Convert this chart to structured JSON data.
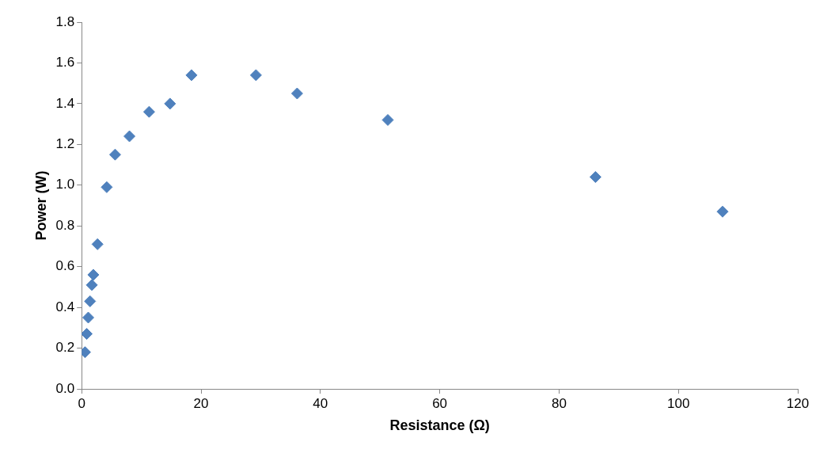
{
  "chart_data": {
    "type": "scatter",
    "xlabel": "Resistance (Ω)",
    "ylabel": "Power (W)",
    "x": [
      0.56,
      0.84,
      1.1,
      1.4,
      1.7,
      1.95,
      2.65,
      4.2,
      5.6,
      8.0,
      11.3,
      14.8,
      18.4,
      29.2,
      36.1,
      51.3,
      86.1,
      107.4
    ],
    "series": [
      {
        "color": "#4f81bd",
        "values": [
          0.18,
          0.27,
          0.35,
          0.43,
          0.51,
          0.56,
          0.71,
          0.99,
          1.15,
          1.24,
          1.36,
          1.4,
          1.54,
          1.54,
          1.45,
          1.32,
          1.04,
          0.87
        ]
      }
    ],
    "xlim": [
      0,
      120
    ],
    "xticks": [
      0,
      20,
      40,
      60,
      80,
      100,
      120
    ],
    "ylim": [
      0,
      1.8
    ],
    "yticks": [
      {
        "value": 0,
        "label": "0.0"
      },
      {
        "value": 0.2,
        "label": "0.2"
      },
      {
        "value": 0.4,
        "label": "0.4"
      },
      {
        "value": 0.6,
        "label": "0.6"
      },
      {
        "value": 0.8,
        "label": "0.8"
      },
      {
        "value": 1,
        "label": "1.0"
      },
      {
        "value": 1.2,
        "label": "1.2"
      },
      {
        "value": 1.4,
        "label": "1.4"
      },
      {
        "value": 1.6,
        "label": "1.6"
      },
      {
        "value": 1.8,
        "label": "1.8"
      }
    ],
    "marker": "diamond",
    "grid": false,
    "legend": false
  }
}
